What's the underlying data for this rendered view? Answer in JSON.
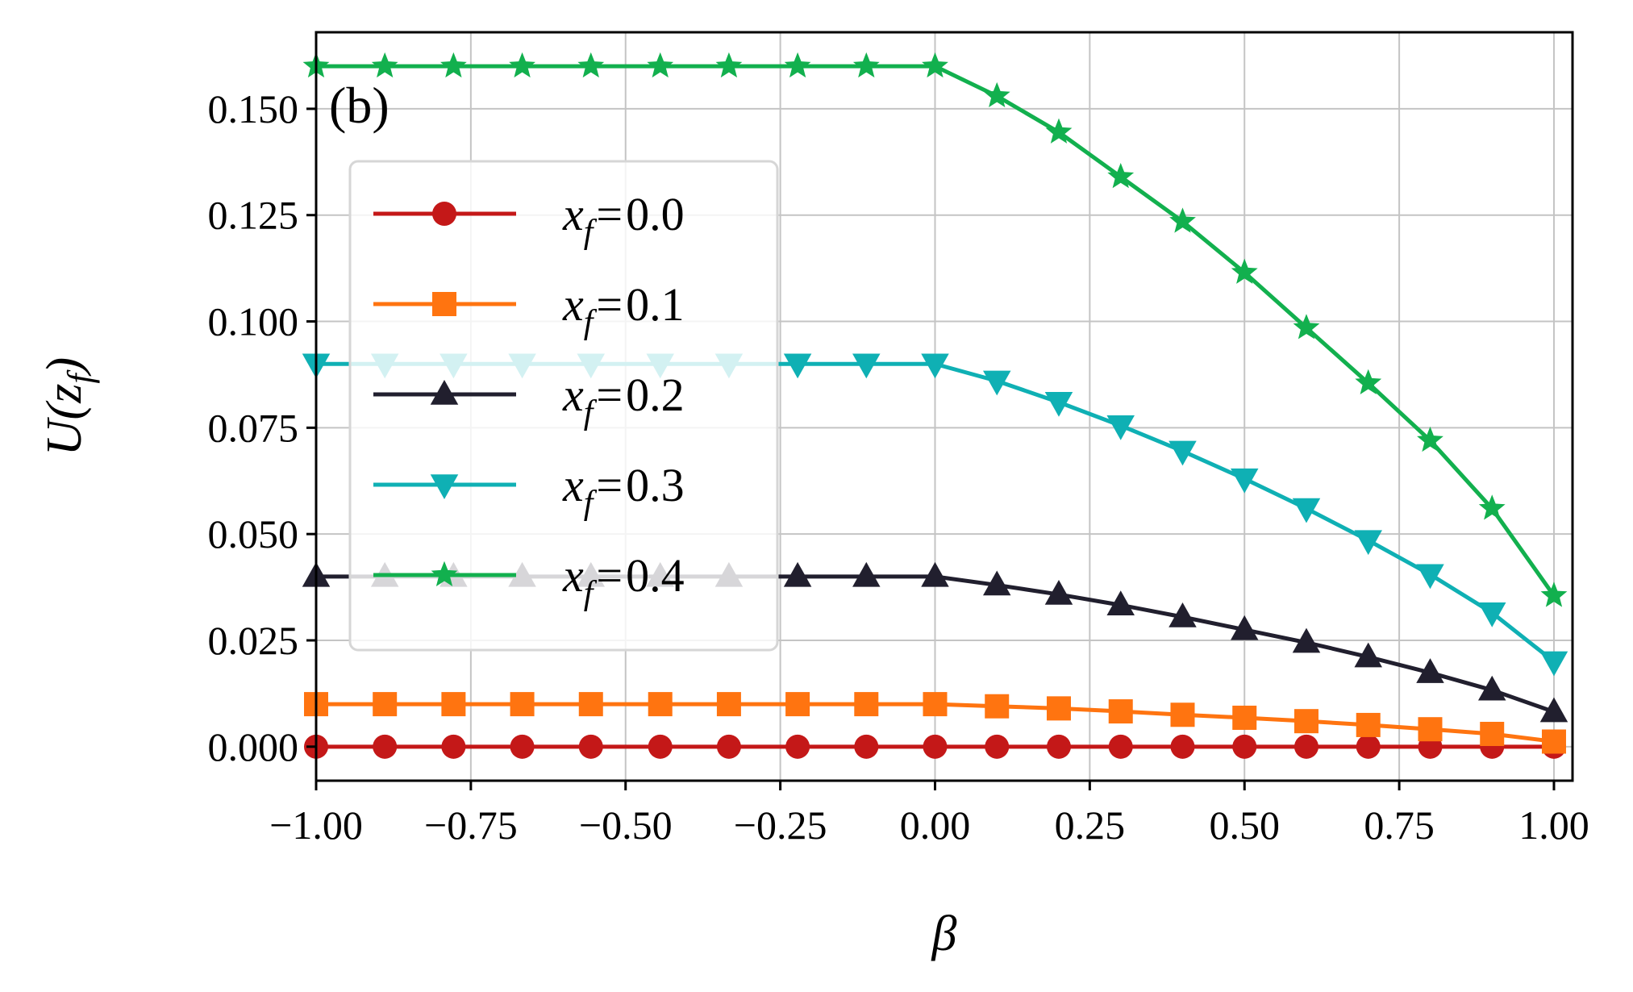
{
  "chart_data": {
    "type": "line",
    "panel_label": "(b)",
    "xlabel": "β",
    "ylabel_main": "U(z",
    "ylabel_sub": "f",
    "ylabel_close": ")",
    "xlim": [
      -1.0,
      1.03
    ],
    "ylim": [
      -0.008,
      0.168
    ],
    "xticks": [
      -1.0,
      -0.75,
      -0.5,
      -0.25,
      0.0,
      0.25,
      0.5,
      0.75,
      1.0
    ],
    "xtick_labels": [
      "−1.00",
      "−0.75",
      "−0.50",
      "−0.25",
      "0.00",
      "0.25",
      "0.50",
      "0.75",
      "1.00"
    ],
    "yticks": [
      0.0,
      0.025,
      0.05,
      0.075,
      0.1,
      0.125,
      0.15
    ],
    "ytick_labels": [
      "0.000",
      "0.025",
      "0.050",
      "0.075",
      "0.100",
      "0.125",
      "0.150"
    ],
    "grid": true,
    "legend_position": "upper-left",
    "x": [
      -1.0,
      -0.889,
      -0.778,
      -0.667,
      -0.556,
      -0.444,
      -0.333,
      -0.222,
      -0.111,
      0.0,
      0.1,
      0.2,
      0.3,
      0.4,
      0.5,
      0.6,
      0.7,
      0.8,
      0.9,
      1.0
    ],
    "series": [
      {
        "name": "0.0",
        "legend_var": "x",
        "legend_sub": "f",
        "legend_eq": "=",
        "color": "#c41818",
        "marker": "circle",
        "values": [
          0,
          0,
          0,
          0,
          0,
          0,
          0,
          0,
          0,
          0,
          0,
          0,
          0,
          0,
          0,
          0,
          0,
          0,
          0,
          0
        ]
      },
      {
        "name": "0.1",
        "legend_var": "x",
        "legend_sub": "f",
        "legend_eq": "=",
        "color": "#ff7410",
        "marker": "square",
        "values": [
          0.01,
          0.01,
          0.01,
          0.01,
          0.01,
          0.01,
          0.01,
          0.01,
          0.01,
          0.01,
          0.0095,
          0.009,
          0.0083,
          0.0075,
          0.0068,
          0.006,
          0.0051,
          0.0041,
          0.003,
          0.0012
        ]
      },
      {
        "name": "0.2",
        "legend_var": "x",
        "legend_sub": "f",
        "legend_eq": "=",
        "color": "#211f2e",
        "marker": "triangle-up",
        "values": [
          0.04,
          0.04,
          0.04,
          0.04,
          0.04,
          0.04,
          0.04,
          0.04,
          0.04,
          0.04,
          0.038,
          0.0358,
          0.0333,
          0.0305,
          0.0275,
          0.0245,
          0.0211,
          0.0174,
          0.0133,
          0.0082
        ]
      },
      {
        "name": "0.3",
        "legend_var": "x",
        "legend_sub": "f",
        "legend_eq": "=",
        "color": "#0fb0b4",
        "marker": "triangle-down",
        "values": [
          0.09,
          0.09,
          0.09,
          0.09,
          0.09,
          0.09,
          0.09,
          0.09,
          0.09,
          0.09,
          0.086,
          0.081,
          0.0755,
          0.0695,
          0.063,
          0.056,
          0.0485,
          0.0405,
          0.0315,
          0.02
        ]
      },
      {
        "name": "0.4",
        "legend_var": "x",
        "legend_sub": "f",
        "legend_eq": "=",
        "color": "#12b04e",
        "marker": "star",
        "values": [
          0.16,
          0.16,
          0.16,
          0.16,
          0.16,
          0.16,
          0.16,
          0.16,
          0.16,
          0.16,
          0.153,
          0.1445,
          0.134,
          0.1235,
          0.1115,
          0.0985,
          0.0855,
          0.072,
          0.056,
          0.0355
        ]
      }
    ]
  }
}
